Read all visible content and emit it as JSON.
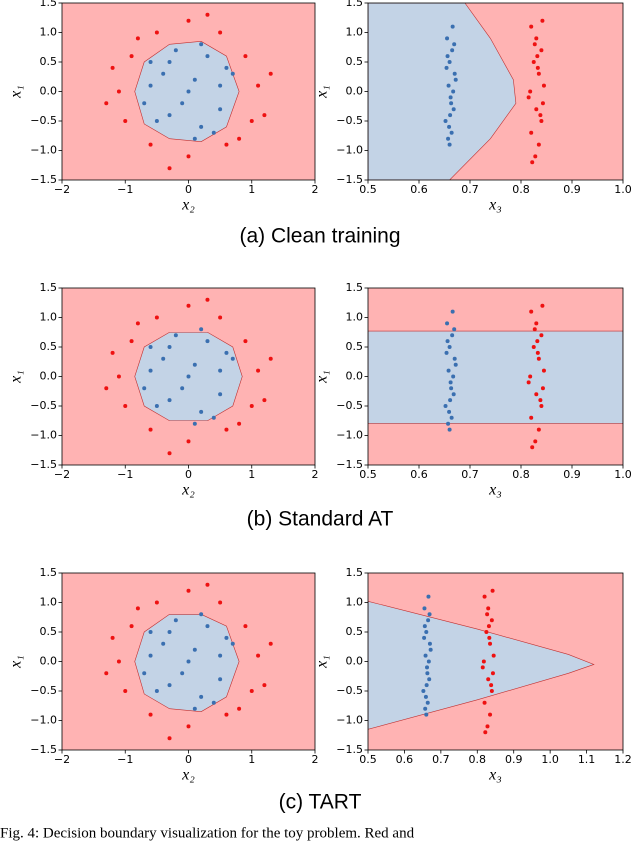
{
  "captions": [
    "(a) Clean training",
    "(b) Standard AT",
    "(c) TART"
  ],
  "figure_caption": "Fig. 4:  Decision boundary visualization for the toy problem. Red and",
  "chart_data": [
    {
      "type": "scatter",
      "xlabel": "x₂",
      "ylabel": "x₁",
      "background": "#ffb3b3",
      "xlim": [
        -2,
        2
      ],
      "ylim": [
        -1.5,
        1.5
      ],
      "xticks": [
        {
          "value": -2,
          "label": "−2"
        },
        {
          "value": -1,
          "label": "−1"
        },
        0,
        1,
        2
      ],
      "yticks": [
        {
          "value": -1.5,
          "label": "−1.5"
        },
        {
          "value": -1.0,
          "label": "−1.0"
        },
        {
          "value": -0.5,
          "label": "−0.5"
        },
        {
          "value": 0,
          "label": "0.0"
        },
        0.5,
        {
          "value": 1.0,
          "label": "1.0"
        },
        1.5
      ],
      "regions": [
        {
          "color": "#c3d3e6",
          "x": [
            0.8,
            0.6,
            0.2,
            -0.3,
            -0.7,
            -0.85,
            -0.7,
            -0.3,
            0.2,
            0.6,
            0.8
          ],
          "y": [
            0.0,
            0.6,
            0.85,
            0.8,
            0.5,
            0.0,
            -0.55,
            -0.8,
            -0.85,
            -0.6,
            0.0
          ]
        }
      ],
      "series": [
        {
          "color": "#3a6fb0",
          "x": [
            0.1,
            -0.3,
            0.5,
            -0.6,
            0.2,
            -0.1,
            0.7,
            -0.5,
            0.3,
            0.0,
            -0.2,
            0.6,
            -0.7,
            0.4,
            -0.4,
            0.1,
            0.5,
            -0.3,
            0.2,
            -0.6
          ],
          "values": [
            0.2,
            0.5,
            -0.3,
            0.1,
            -0.6,
            -0.2,
            0.3,
            -0.5,
            0.6,
            0.0,
            0.7,
            0.4,
            -0.2,
            -0.7,
            0.3,
            -0.8,
            0.1,
            -0.4,
            0.8,
            0.5
          ]
        },
        {
          "color": "#ee1111",
          "x": [
            1.1,
            0.9,
            0.5,
            0.0,
            -0.5,
            -0.9,
            -1.1,
            -1.0,
            -0.6,
            0.0,
            0.6,
            1.0,
            1.3,
            -1.3,
            0.3,
            -0.3,
            0.8,
            -0.8,
            1.2,
            -1.2
          ],
          "values": [
            0.1,
            0.6,
            1.0,
            1.2,
            1.0,
            0.6,
            0.0,
            -0.5,
            -0.9,
            -1.1,
            -0.9,
            -0.5,
            0.3,
            -0.2,
            1.3,
            -1.3,
            -0.8,
            0.9,
            -0.4,
            0.4
          ]
        }
      ]
    },
    {
      "type": "scatter",
      "xlabel": "x₃",
      "ylabel": "x₁",
      "background": "#ffb3b3",
      "xlim": [
        0.5,
        1.0
      ],
      "ylim": [
        -1.5,
        1.5
      ],
      "xticks": [
        0.5,
        0.6,
        0.7,
        0.8,
        0.9,
        {
          "value": 1.0,
          "label": "1.0"
        }
      ],
      "yticks": [
        {
          "value": -1.5,
          "label": "−1.5"
        },
        {
          "value": -1.0,
          "label": "−1.0"
        },
        {
          "value": -0.5,
          "label": "−0.5"
        },
        {
          "value": 0,
          "label": "0.0"
        },
        0.5,
        {
          "value": 1.0,
          "label": "1.0"
        },
        1.5
      ],
      "regions": [
        {
          "color": "#c3d3e6",
          "x": [
            0.5,
            0.69,
            0.74,
            0.785,
            0.79,
            0.74,
            0.66,
            0.5
          ],
          "y": [
            1.5,
            1.5,
            0.9,
            0.2,
            -0.2,
            -0.8,
            -1.5,
            -1.5
          ]
        }
      ],
      "series": [
        {
          "color": "#3a6fb0",
          "x": [
            0.655,
            0.665,
            0.66,
            0.67,
            0.658,
            0.662,
            0.668,
            0.652,
            0.664,
            0.66,
            0.656,
            0.672,
            0.663,
            0.659,
            0.667,
            0.654,
            0.661,
            0.669,
            0.657,
            0.666
          ],
          "values": [
            0.9,
            0.7,
            0.5,
            0.3,
            0.1,
            -0.1,
            -0.3,
            -0.5,
            -0.7,
            -0.9,
            0.6,
            0.2,
            -0.2,
            -0.6,
            0.0,
            0.4,
            -0.4,
            0.8,
            -0.8,
            1.1
          ]
        },
        {
          "color": "#ee1111",
          "x": [
            0.82,
            0.83,
            0.84,
            0.825,
            0.835,
            0.845,
            0.815,
            0.83,
            0.84,
            0.82,
            0.835,
            0.828,
            0.842,
            0.818,
            0.832,
            0.838,
            0.822,
            0.827,
            0.843,
            0.833
          ],
          "values": [
            1.1,
            0.9,
            0.7,
            0.5,
            0.3,
            0.1,
            -0.1,
            -0.3,
            -0.5,
            -0.7,
            -0.9,
            -1.1,
            1.2,
            0.0,
            0.6,
            -0.4,
            -1.2,
            0.8,
            -0.2,
            0.4
          ]
        }
      ]
    },
    {
      "type": "scatter",
      "xlabel": "x₂",
      "ylabel": "x₁",
      "background": "#ffb3b3",
      "xlim": [
        -2,
        2
      ],
      "ylim": [
        -1.5,
        1.5
      ],
      "xticks": [
        {
          "value": -2,
          "label": "−2"
        },
        {
          "value": -1,
          "label": "−1"
        },
        0,
        1,
        2
      ],
      "yticks": [
        {
          "value": -1.5,
          "label": "−1.5"
        },
        {
          "value": -1.0,
          "label": "−1.0"
        },
        {
          "value": -0.5,
          "label": "−0.5"
        },
        {
          "value": 0,
          "label": "0.0"
        },
        0.5,
        {
          "value": 1.0,
          "label": "1.0"
        },
        1.5
      ],
      "regions": [
        {
          "color": "#c3d3e6",
          "x": [
            0.85,
            0.7,
            0.3,
            -0.3,
            -0.7,
            -0.85,
            -0.7,
            -0.3,
            0.3,
            0.7,
            0.85
          ],
          "y": [
            0.0,
            0.5,
            0.75,
            0.75,
            0.5,
            0.0,
            -0.5,
            -0.75,
            -0.75,
            -0.5,
            0.0
          ]
        }
      ],
      "series": [
        {
          "color": "#3a6fb0",
          "x": [
            0.1,
            -0.3,
            0.5,
            -0.6,
            0.2,
            -0.1,
            0.7,
            -0.5,
            0.3,
            0.0,
            -0.2,
            0.6,
            -0.7,
            0.4,
            -0.4,
            0.1,
            0.5,
            -0.3,
            0.2,
            -0.6
          ],
          "values": [
            0.2,
            0.5,
            -0.3,
            0.1,
            -0.6,
            -0.2,
            0.3,
            -0.5,
            0.6,
            0.0,
            0.7,
            0.4,
            -0.2,
            -0.7,
            0.3,
            -0.8,
            0.1,
            -0.4,
            0.8,
            0.5
          ]
        },
        {
          "color": "#ee1111",
          "x": [
            1.1,
            0.9,
            0.5,
            0.0,
            -0.5,
            -0.9,
            -1.1,
            -1.0,
            -0.6,
            0.0,
            0.6,
            1.0,
            1.3,
            -1.3,
            0.3,
            -0.3,
            0.8,
            -0.8,
            1.2,
            -1.2
          ],
          "values": [
            0.1,
            0.6,
            1.0,
            1.2,
            1.0,
            0.6,
            0.0,
            -0.5,
            -0.9,
            -1.1,
            -0.9,
            -0.5,
            0.3,
            -0.2,
            1.3,
            -1.3,
            -0.8,
            0.9,
            -0.4,
            0.4
          ]
        }
      ]
    },
    {
      "type": "scatter",
      "xlabel": "x₃",
      "ylabel": "x₁",
      "background": "#ffb3b3",
      "xlim": [
        0.5,
        1.0
      ],
      "ylim": [
        -1.5,
        1.5
      ],
      "xticks": [
        0.5,
        0.6,
        0.7,
        0.8,
        0.9,
        {
          "value": 1.0,
          "label": "1.0"
        }
      ],
      "yticks": [
        {
          "value": -1.5,
          "label": "−1.5"
        },
        {
          "value": -1.0,
          "label": "−1.0"
        },
        {
          "value": -0.5,
          "label": "−0.5"
        },
        {
          "value": 0,
          "label": "0.0"
        },
        0.5,
        {
          "value": 1.0,
          "label": "1.0"
        },
        1.5
      ],
      "regions": [
        {
          "color": "#c3d3e6",
          "x": [
            0.5,
            1.0,
            1.0,
            0.5
          ],
          "y": [
            0.77,
            0.77,
            -0.8,
            -0.8
          ]
        }
      ],
      "series": [
        {
          "color": "#3a6fb0",
          "x": [
            0.655,
            0.665,
            0.66,
            0.67,
            0.658,
            0.662,
            0.668,
            0.652,
            0.664,
            0.66,
            0.656,
            0.672,
            0.663,
            0.659,
            0.667,
            0.654,
            0.661,
            0.669,
            0.657,
            0.666
          ],
          "values": [
            0.9,
            0.7,
            0.5,
            0.3,
            0.1,
            -0.1,
            -0.3,
            -0.5,
            -0.7,
            -0.9,
            0.6,
            0.2,
            -0.2,
            -0.6,
            0.0,
            0.4,
            -0.4,
            0.8,
            -0.8,
            1.1
          ]
        },
        {
          "color": "#ee1111",
          "x": [
            0.82,
            0.83,
            0.84,
            0.825,
            0.835,
            0.845,
            0.815,
            0.83,
            0.84,
            0.82,
            0.835,
            0.828,
            0.842,
            0.818,
            0.832,
            0.838,
            0.822,
            0.827,
            0.843,
            0.833
          ],
          "values": [
            1.1,
            0.9,
            0.7,
            0.5,
            0.3,
            0.1,
            -0.1,
            -0.3,
            -0.5,
            -0.7,
            -0.9,
            -1.1,
            1.2,
            0.0,
            0.6,
            -0.4,
            -1.2,
            0.8,
            -0.2,
            0.4
          ]
        }
      ]
    },
    {
      "type": "scatter",
      "xlabel": "x₂",
      "ylabel": "x₁",
      "background": "#ffb3b3",
      "xlim": [
        -2,
        2
      ],
      "ylim": [
        -1.5,
        1.5
      ],
      "xticks": [
        {
          "value": -2,
          "label": "−2"
        },
        {
          "value": -1,
          "label": "−1"
        },
        0,
        1,
        2
      ],
      "yticks": [
        {
          "value": -1.5,
          "label": "−1.5"
        },
        {
          "value": -1.0,
          "label": "−1.0"
        },
        {
          "value": -0.5,
          "label": "−0.5"
        },
        {
          "value": 0,
          "label": "0.0"
        },
        0.5,
        {
          "value": 1.0,
          "label": "1.0"
        },
        1.5
      ],
      "regions": [
        {
          "color": "#c3d3e6",
          "x": [
            0.8,
            0.6,
            0.2,
            -0.3,
            -0.7,
            -0.85,
            -0.7,
            -0.3,
            0.2,
            0.6,
            0.8
          ],
          "y": [
            0.0,
            0.6,
            0.8,
            0.8,
            0.5,
            0.0,
            -0.55,
            -0.8,
            -0.85,
            -0.6,
            0.0
          ]
        }
      ],
      "series": [
        {
          "color": "#3a6fb0",
          "x": [
            0.1,
            -0.3,
            0.5,
            -0.6,
            0.2,
            -0.1,
            0.7,
            -0.5,
            0.3,
            0.0,
            -0.2,
            0.6,
            -0.7,
            0.4,
            -0.4,
            0.1,
            0.5,
            -0.3,
            0.2,
            -0.6
          ],
          "values": [
            0.2,
            0.5,
            -0.3,
            0.1,
            -0.6,
            -0.2,
            0.3,
            -0.5,
            0.6,
            0.0,
            0.7,
            0.4,
            -0.2,
            -0.7,
            0.3,
            -0.8,
            0.1,
            -0.4,
            0.8,
            0.5
          ]
        },
        {
          "color": "#ee1111",
          "x": [
            1.1,
            0.9,
            0.5,
            0.0,
            -0.5,
            -0.9,
            -1.1,
            -1.0,
            -0.6,
            0.0,
            0.6,
            1.0,
            1.3,
            -1.3,
            0.3,
            -0.3,
            0.8,
            -0.8,
            1.2,
            -1.2
          ],
          "values": [
            0.1,
            0.6,
            1.0,
            1.2,
            1.0,
            0.6,
            0.0,
            -0.5,
            -0.9,
            -1.1,
            -0.9,
            -0.5,
            0.3,
            -0.2,
            1.3,
            -1.3,
            -0.8,
            0.9,
            -0.4,
            0.4
          ]
        }
      ]
    },
    {
      "type": "scatter",
      "xlabel": "x₃",
      "ylabel": "x₁",
      "background": "#ffb3b3",
      "xlim": [
        0.5,
        1.2
      ],
      "ylim": [
        -1.5,
        1.5
      ],
      "xticks": [
        0.5,
        0.6,
        0.7,
        0.8,
        0.9,
        {
          "value": 1.0,
          "label": "1.0"
        },
        1.1,
        1.2
      ],
      "yticks": [
        {
          "value": -1.5,
          "label": "−1.5"
        },
        {
          "value": -1.0,
          "label": "−1.0"
        },
        {
          "value": -0.5,
          "label": "−0.5"
        },
        {
          "value": 0,
          "label": "0.0"
        },
        0.5,
        {
          "value": 1.0,
          "label": "1.0"
        },
        1.5
      ],
      "regions": [
        {
          "color": "#c3d3e6",
          "x": [
            0.5,
            0.8,
            1.05,
            1.12,
            1.05,
            0.8,
            0.5
          ],
          "y": [
            1.02,
            0.55,
            0.12,
            -0.05,
            -0.2,
            -0.65,
            -1.15
          ]
        }
      ],
      "series": [
        {
          "color": "#3a6fb0",
          "x": [
            0.655,
            0.665,
            0.66,
            0.67,
            0.658,
            0.662,
            0.668,
            0.652,
            0.664,
            0.66,
            0.656,
            0.672,
            0.663,
            0.659,
            0.667,
            0.654,
            0.661,
            0.669,
            0.657,
            0.666
          ],
          "values": [
            0.9,
            0.7,
            0.5,
            0.3,
            0.1,
            -0.1,
            -0.3,
            -0.5,
            -0.7,
            -0.9,
            0.6,
            0.2,
            -0.2,
            -0.6,
            0.0,
            0.4,
            -0.4,
            0.8,
            -0.8,
            1.1
          ]
        },
        {
          "color": "#ee1111",
          "x": [
            0.82,
            0.83,
            0.84,
            0.825,
            0.835,
            0.845,
            0.815,
            0.83,
            0.84,
            0.82,
            0.835,
            0.828,
            0.842,
            0.818,
            0.832,
            0.838,
            0.822,
            0.827,
            0.843,
            0.833
          ],
          "values": [
            1.1,
            0.9,
            0.7,
            0.5,
            0.3,
            0.1,
            -0.1,
            -0.3,
            -0.5,
            -0.7,
            -0.9,
            -1.1,
            1.2,
            0.0,
            0.6,
            -0.4,
            -1.2,
            0.8,
            -0.2,
            0.4
          ]
        }
      ]
    }
  ]
}
